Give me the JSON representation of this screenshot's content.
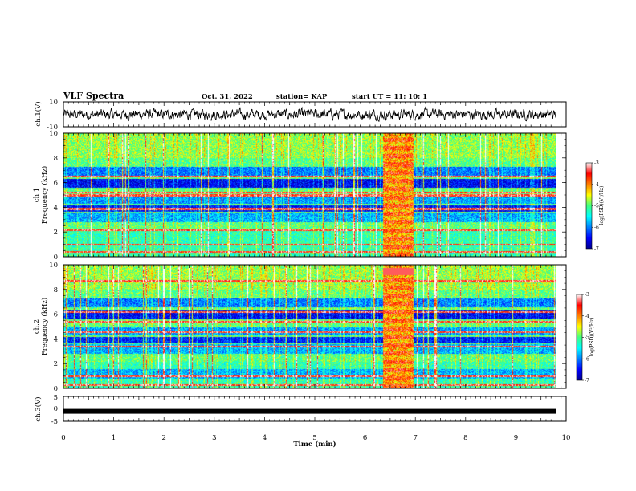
{
  "header": {
    "title": "VLF Spectra",
    "date": "Oct. 31, 2022",
    "station": "station= KAP",
    "start_ut": "start  UT =   11: 10: 1"
  },
  "chart_data": [
    {
      "type": "line",
      "panel": "ch1-waveform",
      "ylabel": "ch.1(V)",
      "ylim": [
        -10,
        10
      ],
      "yticks": [
        "10",
        "-10"
      ],
      "xlim": [
        0,
        10
      ],
      "noise_amplitude": 4,
      "color": "#000000"
    },
    {
      "type": "heatmap",
      "panel": "ch1-spectrogram",
      "ylabel": "ch.1\nFrequency  (kHz)",
      "ylim": [
        0,
        10
      ],
      "yticks": [
        "0",
        "2",
        "4",
        "6",
        "8",
        "10"
      ],
      "xlim": [
        0,
        9.8
      ],
      "burst_interval_min": [
        6.35,
        6.95
      ],
      "colorbar": {
        "label": "log(PSD)(V²/Hz)",
        "ticks": [
          "-3",
          "-4",
          "-5",
          "-6",
          "-7"
        ],
        "range": [
          -7,
          -3
        ]
      }
    },
    {
      "type": "heatmap",
      "panel": "ch2-spectrogram",
      "ylabel": "ch.2\nFrequency  (kHz)",
      "ylim": [
        0,
        10
      ],
      "yticks": [
        "0",
        "2",
        "4",
        "6",
        "8",
        "10"
      ],
      "xlim": [
        0,
        9.8
      ],
      "burst_interval_min": [
        6.35,
        6.95
      ],
      "colorbar": {
        "label": "log(PSD)(V²/Hz)",
        "ticks": [
          "-3",
          "-4",
          "-5",
          "-6",
          "-7"
        ],
        "range": [
          -7,
          -3
        ]
      }
    },
    {
      "type": "line",
      "panel": "ch3-waveform",
      "ylabel": "ch.3(V)",
      "ylim": [
        -5,
        5
      ],
      "yticks": [
        "5",
        "0",
        "-5"
      ],
      "value": -1,
      "xlim": [
        0,
        10
      ],
      "color": "#000000"
    }
  ],
  "xaxis": {
    "label": "Time  (min)",
    "ticks": [
      "0",
      "1",
      "2",
      "3",
      "4",
      "5",
      "6",
      "7",
      "8",
      "9",
      "10"
    ],
    "range": [
      0,
      10
    ]
  }
}
